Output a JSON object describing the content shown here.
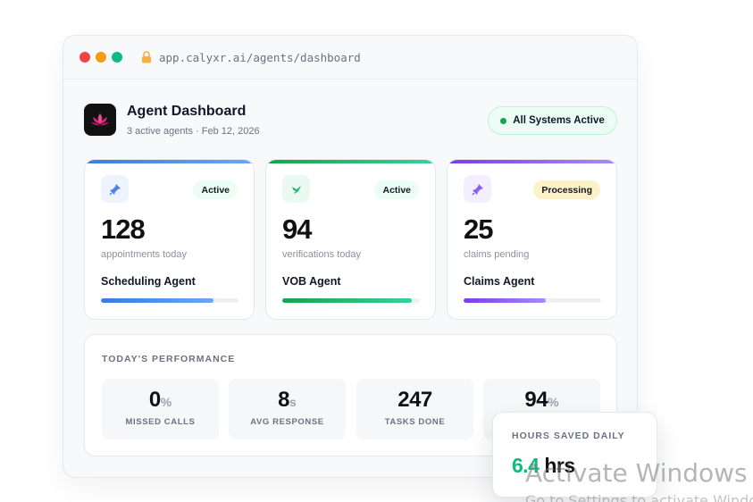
{
  "browser": {
    "url": "app.calyxr.ai/agents/dashboard",
    "dot_colors": [
      "#ef4444",
      "#f59e0b",
      "#10b981"
    ],
    "lock_color": "#f5b041"
  },
  "header": {
    "title": "Agent Dashboard",
    "subtitle": "3 active agents · Feb 12, 2026",
    "status": "All Systems Active",
    "logo_icon": "lotus-icon"
  },
  "agents": [
    {
      "badge": "Active",
      "value": "128",
      "metric": "appointments today",
      "name": "Scheduling Agent",
      "progress": 0.82,
      "accent": "#4a86e8",
      "icon": "pin-icon"
    },
    {
      "badge": "Active",
      "value": "94",
      "metric": "verifications today",
      "name": "VOB Agent",
      "progress": 0.94,
      "accent": "#22b57a",
      "icon": "check-pen-icon"
    },
    {
      "badge": "Processing",
      "value": "25",
      "metric": "claims pending",
      "name": "Claims Agent",
      "progress": 0.6,
      "accent": "#8b5cf6",
      "icon": "pin-icon"
    }
  ],
  "performance": {
    "title": "TODAY'S PERFORMANCE",
    "stats": [
      {
        "value": "0",
        "unit": "%",
        "label": "MISSED CALLS"
      },
      {
        "value": "8",
        "unit": "s",
        "label": "AVG RESPONSE"
      },
      {
        "value": "247",
        "unit": "",
        "label": "TASKS DONE"
      },
      {
        "value": "94",
        "unit": "%",
        "label": ""
      }
    ]
  },
  "hours_saved": {
    "title": "HOURS SAVED DAILY",
    "value": "6.4",
    "unit": "hrs"
  },
  "watermark": {
    "line1": "Activate Windows",
    "line2": "Go to Settings to activate Windows."
  }
}
